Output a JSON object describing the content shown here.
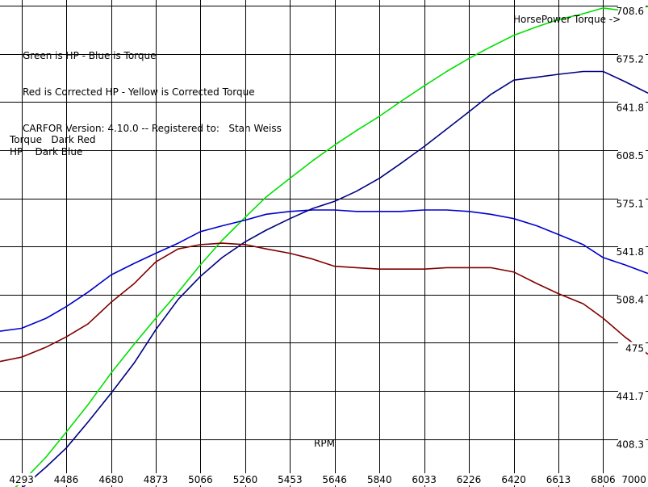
{
  "legend_lines": [
    "Green is HP - Blue is Torque",
    "Red is Corrected HP - Yellow is Corrected Torque",
    "CARFOR Version: 4.10.0 -- Registered to:   Stan Weiss"
  ],
  "annotations": {
    "torque_label": "Torque   Dark Red",
    "hp_label": "HP    Dark Blue",
    "top_right": "HorsePower Torque ->"
  },
  "chart_data": {
    "type": "line",
    "xlabel": "RPM",
    "x_ticks": [
      "4293",
      "4486",
      "4680",
      "4873",
      "5066",
      "5260",
      "5453",
      "5646",
      "5840",
      "6033",
      "6226",
      "6420",
      "6613",
      "6806",
      "7000"
    ],
    "xlim": [
      4200,
      7000
    ],
    "ylim": [
      375,
      708.6
    ],
    "y_ticks": [
      "708.6",
      "675.2",
      "641.8",
      "608.5",
      "575.1",
      "541.8",
      "508.4",
      "475",
      "441.7",
      "408.3"
    ],
    "grid": true,
    "series": [
      {
        "color": "#00e000",
        "x": [
          4200,
          4293,
          4400,
          4486,
          4580,
          4680,
          4780,
          4873,
          4970,
          5066,
          5160,
          5260,
          5350,
          5453,
          5550,
          5646,
          5740,
          5840,
          5930,
          6033,
          6130,
          6226,
          6320,
          6420,
          6520,
          6613,
          6720,
          6806,
          6900,
          7000
        ],
        "y": [
          367,
          378,
          396,
          413,
          432,
          454,
          474,
          492,
          510,
          529,
          546,
          562,
          576,
          589,
          601,
          612,
          622,
          632,
          642,
          653,
          663,
          672,
          680,
          688,
          694,
          699,
          703,
          707,
          705,
          708
        ]
      },
      {
        "color": "#0000cd",
        "x": [
          4200,
          4293,
          4400,
          4486,
          4580,
          4680,
          4780,
          4873,
          4970,
          5066,
          5160,
          5260,
          5350,
          5453,
          5550,
          5646,
          5740,
          5840,
          5930,
          6033,
          6130,
          6226,
          6320,
          6420,
          6520,
          6613,
          6720,
          6806,
          6900,
          7000
        ],
        "y": [
          483,
          485,
          492,
          500,
          510,
          522,
          530,
          537,
          544,
          552,
          556,
          560,
          564,
          566,
          567,
          567,
          566,
          566,
          566,
          567,
          567,
          566,
          564,
          561,
          556,
          550,
          543,
          534,
          529,
          523
        ]
      },
      {
        "color": "#000080",
        "x": [
          4200,
          4293,
          4400,
          4486,
          4580,
          4680,
          4780,
          4873,
          4970,
          5066,
          5160,
          5260,
          5350,
          5453,
          5550,
          5646,
          5740,
          5840,
          5930,
          6033,
          6130,
          6226,
          6320,
          6420,
          6520,
          6613,
          6720,
          6806,
          6900,
          7000
        ],
        "y": [
          366,
          374,
          389,
          402,
          420,
          440,
          461,
          484,
          505,
          521,
          534,
          545,
          553,
          561,
          568,
          573,
          580,
          589,
          599,
          611,
          623,
          635,
          647,
          657,
          659,
          661,
          663,
          663,
          656,
          648
        ]
      },
      {
        "color": "#800000",
        "x": [
          4200,
          4293,
          4400,
          4486,
          4580,
          4680,
          4780,
          4873,
          4970,
          5066,
          5160,
          5260,
          5350,
          5453,
          5550,
          5646,
          5740,
          5840,
          5930,
          6033,
          6130,
          6226,
          6320,
          6420,
          6520,
          6613,
          6720,
          6806,
          6900,
          7000
        ],
        "y": [
          462,
          465,
          472,
          479,
          488,
          503,
          516,
          531,
          540,
          543,
          544,
          543,
          540,
          537,
          533,
          528,
          527,
          526,
          526,
          526,
          527,
          527,
          527,
          524,
          516,
          509,
          502,
          492,
          479,
          467
        ]
      }
    ]
  }
}
